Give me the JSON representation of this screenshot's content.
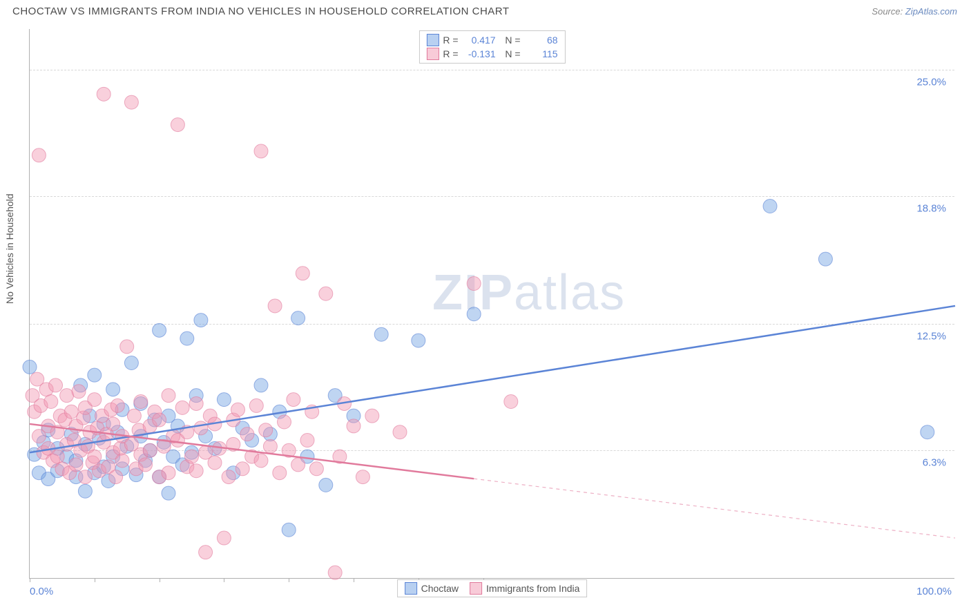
{
  "header": {
    "title": "CHOCTAW VS IMMIGRANTS FROM INDIA NO VEHICLES IN HOUSEHOLD CORRELATION CHART",
    "source_label": "Source:",
    "source_name": "ZipAtlas.com"
  },
  "chart": {
    "type": "scatter",
    "ylabel": "No Vehicles in Household",
    "xlim": [
      0,
      100
    ],
    "ylim": [
      0,
      27
    ],
    "x_tick_positions": [
      0,
      7,
      14,
      21,
      28,
      35,
      42,
      49
    ],
    "x_axis_labels": {
      "left": "0.0%",
      "right": "100.0%"
    },
    "y_ticks": [
      {
        "value": 6.3,
        "label": "6.3%"
      },
      {
        "value": 12.5,
        "label": "12.5%"
      },
      {
        "value": 18.8,
        "label": "18.8%"
      },
      {
        "value": 25.0,
        "label": "25.0%"
      }
    ],
    "grid_color": "#d8d8d8",
    "background_color": "#ffffff",
    "axis_color": "#b0b0b0",
    "marker_radius": 10,
    "marker_opacity": 0.45,
    "watermark": "ZIPatlas",
    "series": [
      {
        "name": "Choctaw",
        "color_fill": "#72a2e3",
        "color_stroke": "#5b84d6",
        "r": 0.417,
        "n": 68,
        "trend": {
          "x1": 0,
          "y1": 6.2,
          "x2": 100,
          "y2": 13.4,
          "solid_until_x": 100
        },
        "points": [
          [
            0,
            10.4
          ],
          [
            0.5,
            6.1
          ],
          [
            1,
            5.2
          ],
          [
            1.5,
            6.7
          ],
          [
            2,
            7.3
          ],
          [
            2,
            4.9
          ],
          [
            3,
            5.3
          ],
          [
            3,
            6.4
          ],
          [
            4,
            6.0
          ],
          [
            4.5,
            7.1
          ],
          [
            5,
            5.0
          ],
          [
            5,
            5.8
          ],
          [
            5.5,
            9.5
          ],
          [
            6,
            4.3
          ],
          [
            6,
            6.6
          ],
          [
            6.5,
            8.0
          ],
          [
            7,
            10.0
          ],
          [
            7,
            5.2
          ],
          [
            7.5,
            6.9
          ],
          [
            8,
            7.6
          ],
          [
            8,
            5.5
          ],
          [
            8.5,
            4.8
          ],
          [
            9,
            9.3
          ],
          [
            9,
            6.0
          ],
          [
            9.5,
            7.2
          ],
          [
            10,
            5.4
          ],
          [
            10,
            8.3
          ],
          [
            10.5,
            6.5
          ],
          [
            11,
            10.6
          ],
          [
            11.5,
            5.1
          ],
          [
            12,
            7.0
          ],
          [
            12,
            8.6
          ],
          [
            12.5,
            5.8
          ],
          [
            13,
            6.3
          ],
          [
            13.5,
            7.8
          ],
          [
            14,
            12.2
          ],
          [
            14,
            5.0
          ],
          [
            14.5,
            6.7
          ],
          [
            15,
            8.0
          ],
          [
            15,
            4.2
          ],
          [
            15.5,
            6.0
          ],
          [
            16,
            7.5
          ],
          [
            16.5,
            5.6
          ],
          [
            17,
            11.8
          ],
          [
            17.5,
            6.2
          ],
          [
            18,
            9.0
          ],
          [
            18.5,
            12.7
          ],
          [
            19,
            7.0
          ],
          [
            20,
            6.4
          ],
          [
            21,
            8.8
          ],
          [
            22,
            5.2
          ],
          [
            23,
            7.4
          ],
          [
            24,
            6.8
          ],
          [
            25,
            9.5
          ],
          [
            26,
            7.1
          ],
          [
            27,
            8.2
          ],
          [
            28,
            2.4
          ],
          [
            29,
            12.8
          ],
          [
            30,
            6.0
          ],
          [
            32,
            4.6
          ],
          [
            33,
            9.0
          ],
          [
            35,
            8.0
          ],
          [
            38,
            12.0
          ],
          [
            42,
            11.7
          ],
          [
            48,
            13.0
          ],
          [
            80,
            18.3
          ],
          [
            86,
            15.7
          ],
          [
            97,
            7.2
          ]
        ]
      },
      {
        "name": "Immigrants from India",
        "color_fill": "#f297b1",
        "color_stroke": "#e17a9c",
        "r": -0.131,
        "n": 115,
        "trend": {
          "x1": 0,
          "y1": 7.6,
          "x2": 100,
          "y2": 2.0,
          "solid_until_x": 48
        },
        "points": [
          [
            0.3,
            9.0
          ],
          [
            0.5,
            8.2
          ],
          [
            0.8,
            9.8
          ],
          [
            1,
            7.0
          ],
          [
            1,
            20.8
          ],
          [
            1.2,
            8.5
          ],
          [
            1.5,
            6.2
          ],
          [
            1.8,
            9.3
          ],
          [
            2,
            7.5
          ],
          [
            2,
            6.4
          ],
          [
            2.3,
            8.7
          ],
          [
            2.5,
            5.8
          ],
          [
            2.8,
            9.5
          ],
          [
            3,
            7.2
          ],
          [
            3,
            6.0
          ],
          [
            3.3,
            8.0
          ],
          [
            3.5,
            5.4
          ],
          [
            3.8,
            7.8
          ],
          [
            4,
            6.6
          ],
          [
            4,
            9.0
          ],
          [
            4.3,
            5.2
          ],
          [
            4.5,
            8.2
          ],
          [
            4.8,
            6.8
          ],
          [
            5,
            7.5
          ],
          [
            5,
            5.6
          ],
          [
            5.3,
            9.2
          ],
          [
            5.5,
            6.3
          ],
          [
            5.8,
            7.9
          ],
          [
            6,
            5.0
          ],
          [
            6,
            8.4
          ],
          [
            6.3,
            6.5
          ],
          [
            6.5,
            7.2
          ],
          [
            6.8,
            5.7
          ],
          [
            7,
            8.8
          ],
          [
            7,
            6.0
          ],
          [
            7.3,
            7.4
          ],
          [
            7.5,
            5.3
          ],
          [
            7.8,
            8.0
          ],
          [
            8,
            6.7
          ],
          [
            8,
            23.8
          ],
          [
            8.3,
            7.1
          ],
          [
            8.5,
            5.5
          ],
          [
            8.8,
            8.3
          ],
          [
            9,
            6.2
          ],
          [
            9,
            7.6
          ],
          [
            9.3,
            5.0
          ],
          [
            9.5,
            8.5
          ],
          [
            9.8,
            6.4
          ],
          [
            10,
            7.0
          ],
          [
            10,
            5.8
          ],
          [
            10.5,
            11.4
          ],
          [
            11,
            6.6
          ],
          [
            11,
            23.4
          ],
          [
            11.3,
            8.0
          ],
          [
            11.5,
            5.4
          ],
          [
            11.8,
            7.3
          ],
          [
            12,
            6.1
          ],
          [
            12,
            8.7
          ],
          [
            12.5,
            5.6
          ],
          [
            13,
            7.5
          ],
          [
            13,
            6.3
          ],
          [
            13.5,
            8.2
          ],
          [
            14,
            5.0
          ],
          [
            14,
            7.8
          ],
          [
            14.5,
            6.5
          ],
          [
            15,
            9.0
          ],
          [
            15,
            5.2
          ],
          [
            15.5,
            7.0
          ],
          [
            16,
            6.8
          ],
          [
            16,
            22.3
          ],
          [
            16.5,
            8.4
          ],
          [
            17,
            5.5
          ],
          [
            17,
            7.2
          ],
          [
            17.5,
            6.0
          ],
          [
            18,
            8.6
          ],
          [
            18,
            5.3
          ],
          [
            18.5,
            7.4
          ],
          [
            19,
            6.2
          ],
          [
            19,
            1.3
          ],
          [
            19.5,
            8.0
          ],
          [
            20,
            5.7
          ],
          [
            20,
            7.6
          ],
          [
            20.5,
            6.4
          ],
          [
            21,
            2.0
          ],
          [
            21.5,
            5.0
          ],
          [
            22,
            7.8
          ],
          [
            22,
            6.6
          ],
          [
            22.5,
            8.3
          ],
          [
            23,
            5.4
          ],
          [
            23.5,
            7.1
          ],
          [
            24,
            6.0
          ],
          [
            24.5,
            8.5
          ],
          [
            25,
            5.8
          ],
          [
            25,
            21.0
          ],
          [
            25.5,
            7.3
          ],
          [
            26,
            6.5
          ],
          [
            26.5,
            13.4
          ],
          [
            27,
            5.2
          ],
          [
            27.5,
            7.7
          ],
          [
            28,
            6.3
          ],
          [
            28.5,
            8.8
          ],
          [
            29,
            5.6
          ],
          [
            29.5,
            15.0
          ],
          [
            30,
            6.8
          ],
          [
            30.5,
            8.2
          ],
          [
            31,
            5.4
          ],
          [
            32,
            14.0
          ],
          [
            33,
            0.3
          ],
          [
            33.5,
            6.0
          ],
          [
            34,
            8.6
          ],
          [
            35,
            7.5
          ],
          [
            36,
            5.0
          ],
          [
            37,
            8.0
          ],
          [
            40,
            7.2
          ],
          [
            48,
            14.5
          ],
          [
            52,
            8.7
          ]
        ]
      }
    ],
    "legend": {
      "items": [
        "Choctaw",
        "Immigrants from India"
      ]
    }
  }
}
